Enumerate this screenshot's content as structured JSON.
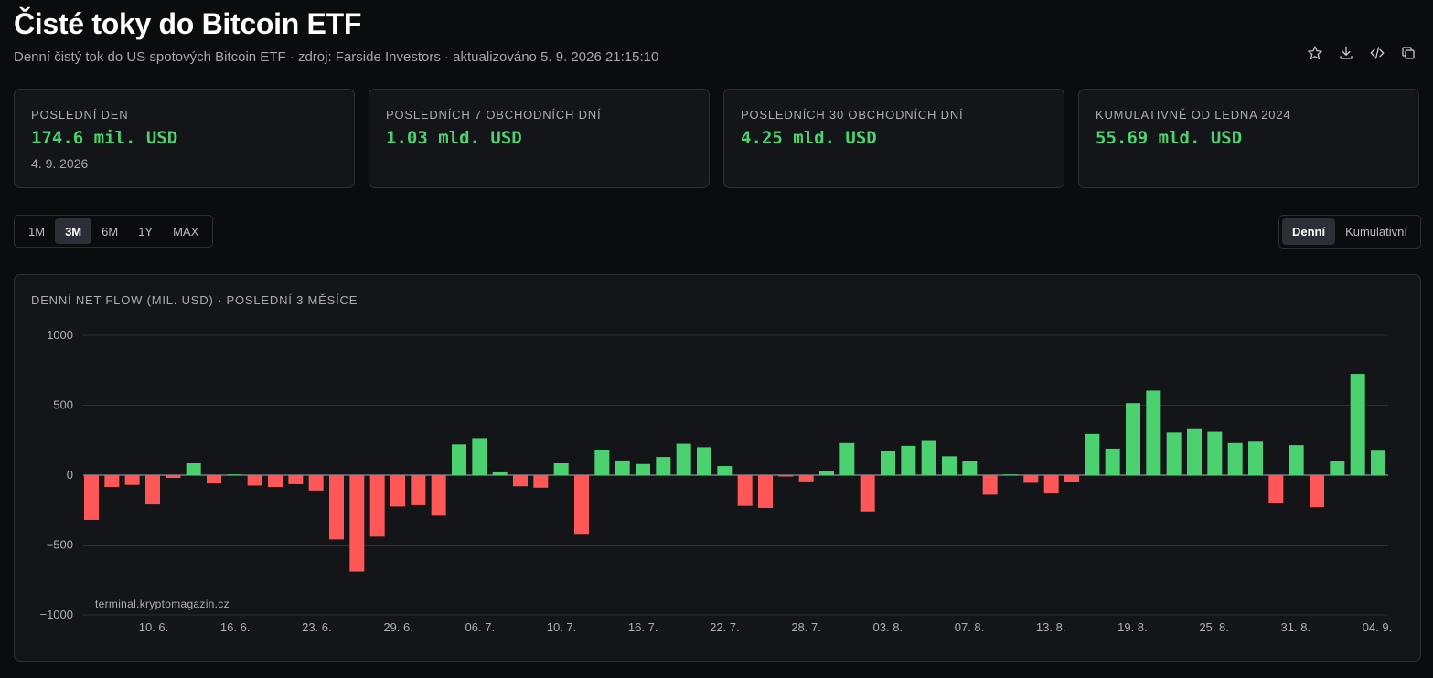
{
  "header": {
    "title": "Čisté toky do Bitcoin ETF",
    "subtitle": "Denní čistý tok do US spotových Bitcoin ETF · zdroj: Farside Investors · aktualizováno 5. 9. 2026 21:15:10",
    "actions": [
      {
        "name": "star-icon"
      },
      {
        "name": "download-icon"
      },
      {
        "name": "code-icon"
      },
      {
        "name": "copy-icon"
      }
    ]
  },
  "cards": [
    {
      "label": "POSLEDNÍ DEN",
      "value": "174.6 mil. USD",
      "date": "4. 9. 2026"
    },
    {
      "label": "POSLEDNÍCH 7 OBCHODNÍCH DNÍ",
      "value": "1.03 mld. USD"
    },
    {
      "label": "POSLEDNÍCH 30 OBCHODNÍCH DNÍ",
      "value": "4.25 mld. USD"
    },
    {
      "label": "KUMULATIVNĚ OD LEDNA 2024",
      "value": "55.69 mld. USD"
    }
  ],
  "ranges": {
    "items": [
      "1M",
      "3M",
      "6M",
      "1Y",
      "MAX"
    ],
    "active": "3M"
  },
  "modes": {
    "items": [
      "Denní",
      "Kumulativní"
    ],
    "active": "Denní"
  },
  "chart_panel": {
    "title": "DENNÍ NET FLOW (MIL. USD) · POSLEDNÍ 3 MĚSÍCE",
    "watermark": "terminal.kryptomagazin.cz"
  },
  "colors": {
    "positive": "#4bd170",
    "negative": "#ff5757",
    "grid": "#2a2d32",
    "zero": "#8a8f96"
  },
  "chart_data": {
    "type": "bar",
    "title": "DENNÍ NET FLOW (MIL. USD) · POSLEDNÍ 3 MĚSÍCE",
    "ylim": [
      -1000,
      1000
    ],
    "yticks": [
      1000,
      500,
      0,
      -500,
      -1000
    ],
    "grid": true,
    "xtick_labels": [
      "10. 6.",
      "16. 6.",
      "23. 6.",
      "29. 6.",
      "06. 7.",
      "10. 7.",
      "16. 7.",
      "22. 7.",
      "28. 7.",
      "03. 8.",
      "07. 8.",
      "13. 8.",
      "19. 8.",
      "25. 8.",
      "31. 8.",
      "04. 9."
    ],
    "values": [
      -320,
      -85,
      -70,
      -210,
      -20,
      85,
      -60,
      5,
      -75,
      -85,
      -65,
      -110,
      -460,
      -690,
      -440,
      -225,
      -215,
      -290,
      220,
      265,
      20,
      -80,
      -90,
      85,
      -420,
      180,
      105,
      80,
      130,
      225,
      200,
      65,
      -220,
      -235,
      -10,
      -45,
      30,
      230,
      -260,
      170,
      210,
      245,
      135,
      100,
      -140,
      5,
      -55,
      -125,
      -50,
      295,
      190,
      515,
      605,
      305,
      335,
      310,
      230,
      240,
      -200,
      215,
      -230,
      100,
      725,
      175
    ]
  }
}
